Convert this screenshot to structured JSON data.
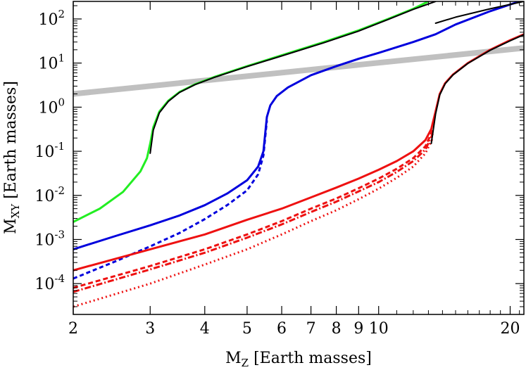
{
  "chart_data": {
    "type": "line",
    "xlabel": "M",
    "xlabel_sub": "Z",
    "xlabel_rest": " [Earth masses]",
    "ylabel": "M",
    "ylabel_sub": "XY",
    "ylabel_rest": " [Earth masses]",
    "x_scale": "log",
    "y_scale": "log",
    "xlim": [
      2,
      21.5
    ],
    "ylim": [
      2e-05,
      250
    ],
    "x_ticks": [
      {
        "value": 2,
        "label": "2"
      },
      {
        "value": 3,
        "label": "3"
      },
      {
        "value": 4,
        "label": "4"
      },
      {
        "value": 5,
        "label": "5"
      },
      {
        "value": 6,
        "label": "6"
      },
      {
        "value": 7,
        "label": "7"
      },
      {
        "value": 8,
        "label": "8"
      },
      {
        "value": 9,
        "label": "9"
      },
      {
        "value": 10,
        "label": "10"
      },
      {
        "value": 20,
        "label": "20"
      }
    ],
    "y_ticks": [
      {
        "value": 0.0001,
        "base": "10",
        "exp": "-4"
      },
      {
        "value": 0.001,
        "base": "10",
        "exp": "-3"
      },
      {
        "value": 0.01,
        "base": "10",
        "exp": "-2"
      },
      {
        "value": 0.1,
        "base": "10",
        "exp": "-1"
      },
      {
        "value": 1,
        "base": "10",
        "exp": "0"
      },
      {
        "value": 10,
        "base": "10",
        "exp": "1"
      },
      {
        "value": 100,
        "base": "10",
        "exp": "2"
      }
    ],
    "grid": false,
    "legend": "none",
    "series": [
      {
        "id": "gray-reference",
        "color": "#c0c0c0",
        "width": 8,
        "dash": "",
        "x": [
          2,
          21.5
        ],
        "y": [
          2.0,
          22.0
        ]
      },
      {
        "id": "green-solid",
        "color": "#22ee22",
        "width": 3,
        "dash": "",
        "x": [
          2.0,
          2.3,
          2.6,
          2.85,
          2.95,
          3.0,
          3.05,
          3.15,
          3.3,
          3.5,
          3.8,
          4.2,
          5.0,
          6.0,
          7.5,
          9.0,
          10.5,
          12.0,
          13.0
        ],
        "y": [
          0.0025,
          0.005,
          0.012,
          0.035,
          0.07,
          0.15,
          0.35,
          0.8,
          1.4,
          2.2,
          3.3,
          4.8,
          8.5,
          15,
          30,
          55,
          100,
          170,
          250
        ]
      },
      {
        "id": "green-black",
        "color": "#000000",
        "width": 2,
        "dash": "",
        "x": [
          3.0,
          3.05,
          3.15,
          3.3,
          3.5,
          3.8,
          4.2,
          5.0,
          6.0,
          7.5,
          9.0,
          10.5,
          12.0,
          13.5
        ],
        "y": [
          0.09,
          0.3,
          0.75,
          1.35,
          2.15,
          3.25,
          4.7,
          8.3,
          14.5,
          29,
          53,
          97,
          165,
          250
        ]
      },
      {
        "id": "blue-solid",
        "color": "#0000dd",
        "width": 3,
        "dash": "",
        "x": [
          2.0,
          2.5,
          3.0,
          3.5,
          4.0,
          4.5,
          5.0,
          5.3,
          5.45,
          5.5,
          5.55,
          5.65,
          5.85,
          6.2,
          7.0,
          8.0,
          9.0,
          10.0,
          12.0,
          13.5,
          15.0,
          18.0,
          21.0
        ],
        "y": [
          0.0006,
          0.0012,
          0.0021,
          0.0035,
          0.006,
          0.011,
          0.022,
          0.045,
          0.1,
          0.25,
          0.6,
          1.1,
          1.8,
          2.8,
          5.3,
          8.5,
          12.5,
          17,
          30,
          45,
          75,
          150,
          250
        ]
      },
      {
        "id": "blue-dashed",
        "color": "#0000dd",
        "width": 3,
        "dash": "6,4",
        "x": [
          2.0,
          2.5,
          3.0,
          3.5,
          4.0,
          4.5,
          5.0,
          5.3,
          5.45,
          5.55
        ],
        "y": [
          0.00013,
          0.00032,
          0.0007,
          0.0014,
          0.0029,
          0.006,
          0.013,
          0.03,
          0.08,
          0.5
        ]
      },
      {
        "id": "blue-black",
        "color": "#000000",
        "width": 2,
        "dash": "",
        "x": [
          13.5,
          15.0,
          18.0,
          21.5
        ],
        "y": [
          80,
          110,
          170,
          250
        ]
      },
      {
        "id": "red-solid",
        "color": "#ee1111",
        "width": 3,
        "dash": "",
        "x": [
          2.0,
          3.0,
          4.0,
          5.0,
          6.0,
          7.0,
          8.0,
          9.0,
          10.0,
          11.0,
          12.0,
          12.8,
          13.2,
          13.5,
          13.8,
          14.2,
          14.8,
          16.0,
          18.0,
          20.0,
          21.5
        ],
        "y": [
          0.0002,
          0.0006,
          0.0013,
          0.0028,
          0.005,
          0.009,
          0.015,
          0.024,
          0.038,
          0.06,
          0.1,
          0.18,
          0.32,
          0.8,
          2.0,
          3.5,
          5.5,
          10,
          20,
          33,
          45
        ]
      },
      {
        "id": "red-dashed",
        "color": "#ee1111",
        "width": 3,
        "dash": "7,4",
        "x": [
          2.0,
          3.0,
          4.0,
          5.0,
          6.0,
          7.0,
          8.0,
          9.0,
          10.0,
          11.0,
          12.0,
          12.8,
          13.3
        ],
        "y": [
          8e-05,
          0.00025,
          0.0006,
          0.0013,
          0.0026,
          0.005,
          0.0085,
          0.0145,
          0.024,
          0.04,
          0.07,
          0.13,
          0.3
        ]
      },
      {
        "id": "red-dash-dot",
        "color": "#ee1111",
        "width": 3,
        "dash": "9,3,2,3",
        "x": [
          2.0,
          3.0,
          4.0,
          5.0,
          6.0,
          7.0,
          8.0,
          9.0,
          10.0,
          11.0,
          12.0,
          12.8,
          13.3
        ],
        "y": [
          6.5e-05,
          0.00021,
          0.0005,
          0.0011,
          0.0022,
          0.0042,
          0.0072,
          0.0123,
          0.02,
          0.034,
          0.06,
          0.11,
          0.25
        ]
      },
      {
        "id": "red-dotted",
        "color": "#ee1111",
        "width": 3,
        "dash": "2,4",
        "x": [
          2.0,
          3.0,
          4.0,
          5.0,
          6.0,
          7.0,
          8.0,
          9.0,
          10.0,
          11.0,
          12.0,
          12.8,
          13.3
        ],
        "y": [
          3e-05,
          0.0001,
          0.00027,
          0.0006,
          0.0013,
          0.0026,
          0.0046,
          0.0082,
          0.0142,
          0.025,
          0.045,
          0.09,
          0.2
        ]
      },
      {
        "id": "red-black",
        "color": "#000000",
        "width": 2,
        "dash": "",
        "x": [
          13.2,
          13.5,
          13.8,
          14.2,
          14.8,
          16.0,
          18.0,
          20.0,
          21.5
        ],
        "y": [
          0.15,
          0.7,
          1.9,
          3.4,
          5.4,
          9.8,
          19.5,
          32,
          44
        ]
      }
    ]
  }
}
